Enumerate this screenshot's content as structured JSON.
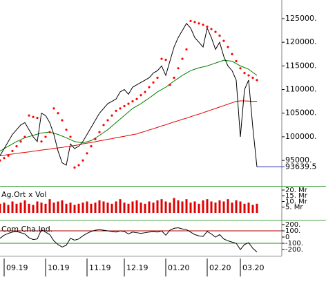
{
  "chart_data": [
    {
      "type": "line",
      "x": [
        0,
        1,
        2,
        3,
        4,
        5,
        6,
        7,
        8,
        9,
        10,
        11,
        12,
        13,
        14,
        15,
        16,
        17,
        18,
        19,
        20,
        21,
        22,
        23,
        24,
        25,
        26,
        27,
        28,
        29,
        30,
        31,
        32,
        33,
        34,
        35,
        36,
        37,
        38,
        39,
        40,
        41,
        42,
        43,
        44,
        45,
        46,
        47,
        48,
        49,
        50,
        51,
        52,
        53,
        54,
        55,
        56,
        57,
        58,
        59,
        60,
        61,
        62
      ],
      "xlim": [
        0,
        68
      ],
      "ylim": [
        89750,
        128950
      ],
      "yticks": [
        {
          "value": 95000,
          "label": "95000."
        },
        {
          "value": 100000,
          "label": "100000."
        },
        {
          "value": 105000,
          "label": "105000."
        },
        {
          "value": 110000,
          "label": "110000."
        },
        {
          "value": 115000,
          "label": "115000."
        },
        {
          "value": 120000,
          "label": "120000."
        },
        {
          "value": 125000,
          "label": "125000."
        }
      ],
      "last_price": {
        "value": 93639.5,
        "label": "93639.5",
        "color": "#2020c0"
      },
      "series": [
        {
          "style": "line",
          "color": "#008000",
          "values": [
            97000,
            97500,
            98000,
            98500,
            99000,
            99400,
            99800,
            100050,
            100300,
            100550,
            100800,
            100900,
            101000,
            100750,
            100500,
            100150,
            99800,
            99400,
            99000,
            98850,
            98700,
            98950,
            99200,
            99750,
            100300,
            100900,
            101500,
            102250,
            103000,
            103750,
            104500,
            105250,
            106000,
            106500,
            107000,
            107600,
            108200,
            108850,
            109500,
            110000,
            110500,
            111150,
            111800,
            112400,
            113000,
            113500,
            114000,
            114300,
            114600,
            114800,
            115000,
            115300,
            115600,
            115900,
            116200,
            116100,
            116000,
            115500,
            115000,
            114650,
            114300,
            113650,
            113000
          ]
        },
        {
          "style": "line",
          "color": "#e00000",
          "values": [
            96000,
            96100,
            96250,
            96350,
            96450,
            96600,
            96700,
            96800,
            96950,
            97050,
            97200,
            97300,
            97400,
            97550,
            97650,
            97750,
            97900,
            98000,
            98150,
            98300,
            98500,
            98650,
            98800,
            98950,
            99150,
            99300,
            99450,
            99600,
            99800,
            99950,
            100100,
            100300,
            100450,
            100600,
            100900,
            101150,
            101450,
            101700,
            102000,
            102300,
            102550,
            102850,
            103150,
            103400,
            103700,
            103950,
            104250,
            104550,
            104800,
            105100,
            105400,
            105700,
            106000,
            106300,
            106600,
            106900,
            107200,
            107500,
            107600,
            107600,
            107550,
            107500,
            107500
          ]
        },
        {
          "style": "line",
          "color": "#000000",
          "values": [
            96000,
            97500,
            99000,
            100500,
            101500,
            102500,
            103000,
            101500,
            100000,
            99000,
            105000,
            104500,
            103000,
            100500,
            97000,
            94500,
            94000,
            98500,
            97500,
            98000,
            99000,
            100500,
            102000,
            103500,
            105000,
            106000,
            107000,
            107500,
            108000,
            109500,
            110000,
            109000,
            110500,
            111000,
            111500,
            112000,
            112500,
            113500,
            114000,
            115000,
            113000,
            116000,
            119000,
            121000,
            122500,
            124000,
            123000,
            121000,
            120000,
            119000,
            123000,
            121000,
            118500,
            120000,
            117000,
            115000,
            114000,
            112000,
            100000,
            110000,
            112000,
            102000,
            93639.5
          ]
        },
        {
          "style": "dots",
          "color": "#ff0000",
          "values": [
            95000,
            95500,
            96000,
            97000,
            98000,
            99000,
            100000,
            104500,
            104200,
            104000,
            99000,
            100000,
            101000,
            106000,
            105000,
            103500,
            101500,
            100000,
            93500,
            94000,
            95000,
            96500,
            98000,
            99500,
            101000,
            102500,
            103500,
            104500,
            105500,
            106000,
            106500,
            107000,
            107500,
            108000,
            108800,
            109500,
            110500,
            111500,
            112500,
            116500,
            116300,
            111000,
            112500,
            114500,
            116500,
            118500,
            124500,
            124300,
            124000,
            123700,
            123300,
            122800,
            122200,
            121400,
            120300,
            119000,
            117500,
            116000,
            114500,
            113500,
            113000,
            112500,
            112000
          ]
        }
      ]
    },
    {
      "type": "bar",
      "label": "Ag.Ort x Vol",
      "x": [
        0,
        1,
        2,
        3,
        4,
        5,
        6,
        7,
        8,
        9,
        10,
        11,
        12,
        13,
        14,
        15,
        16,
        17,
        18,
        19,
        20,
        21,
        22,
        23,
        24,
        25,
        26,
        27,
        28,
        29,
        30,
        31,
        32,
        33,
        34,
        35,
        36,
        37,
        38,
        39,
        40,
        41,
        42,
        43,
        44,
        45,
        46,
        47,
        48,
        49,
        50,
        51,
        52,
        53,
        54,
        55,
        56,
        57,
        58,
        59,
        60,
        61,
        62
      ],
      "xlim": [
        0,
        68
      ],
      "ylim": [
        0,
        23
      ],
      "yticks": [
        {
          "value": 5,
          "label": "5. Mr"
        },
        {
          "value": 10,
          "label": "10. Mr"
        },
        {
          "value": 15,
          "label": "15. Mr"
        },
        {
          "value": 20,
          "label": "20. Mr"
        }
      ],
      "color": "#e00000",
      "values": [
        8,
        9,
        7,
        10,
        8,
        9,
        11,
        8,
        7,
        10,
        9,
        8,
        12,
        9,
        10,
        11,
        8,
        9,
        7,
        8,
        9,
        10,
        8,
        9,
        11,
        10,
        9,
        8,
        10,
        12,
        9,
        8,
        10,
        11,
        9,
        8,
        10,
        9,
        11,
        12,
        10,
        9,
        13,
        11,
        10,
        12,
        9,
        10,
        8,
        11,
        12,
        10,
        9,
        11,
        10,
        12,
        9,
        11,
        10,
        8,
        9,
        7,
        8
      ]
    },
    {
      "type": "line",
      "label": "Com.Cha.Ind.",
      "x": [
        0,
        1,
        2,
        3,
        4,
        5,
        6,
        7,
        8,
        9,
        10,
        11,
        12,
        13,
        14,
        15,
        16,
        17,
        18,
        19,
        20,
        21,
        22,
        23,
        24,
        25,
        26,
        27,
        28,
        29,
        30,
        31,
        32,
        33,
        34,
        35,
        36,
        37,
        38,
        39,
        40,
        41,
        42,
        43,
        44,
        45,
        46,
        47,
        48,
        49,
        50,
        51,
        52,
        53,
        54,
        55,
        56,
        57,
        58,
        59,
        60,
        61,
        62
      ],
      "xlim": [
        0,
        68
      ],
      "xticks": [
        {
          "value": 1,
          "label": "09.19"
        },
        {
          "value": 11,
          "label": "10.19"
        },
        {
          "value": 21,
          "label": "11.19"
        },
        {
          "value": 30,
          "label": "12.19"
        },
        {
          "value": 40,
          "label": "01.20"
        },
        {
          "value": 50,
          "label": "02.20"
        },
        {
          "value": 58,
          "label": "03.20"
        }
      ],
      "ylim": [
        -255,
        255
      ],
      "yticks": [
        {
          "value": -200,
          "label": "-200."
        },
        {
          "value": -100,
          "label": "-100."
        },
        0,
        {
          "value": 100,
          "label": "100."
        },
        {
          "value": 200,
          "label": "200."
        }
      ],
      "levels": [
        {
          "value": 100,
          "color": "#b00000"
        },
        {
          "value": -100,
          "color": "#00a000"
        }
      ],
      "series": [
        {
          "style": "line",
          "color": "#000000",
          "values": [
            -20,
            30,
            60,
            80,
            90,
            70,
            50,
            -10,
            -40,
            -30,
            120,
            80,
            40,
            -60,
            -120,
            -160,
            -130,
            -20,
            -50,
            -30,
            20,
            60,
            90,
            110,
            120,
            110,
            100,
            90,
            80,
            100,
            90,
            50,
            80,
            70,
            60,
            70,
            80,
            90,
            80,
            100,
            30,
            110,
            140,
            150,
            130,
            120,
            80,
            40,
            20,
            10,
            90,
            50,
            0,
            40,
            -30,
            -60,
            -80,
            -100,
            -200,
            -120,
            -90,
            -180,
            -240
          ]
        }
      ]
    }
  ]
}
